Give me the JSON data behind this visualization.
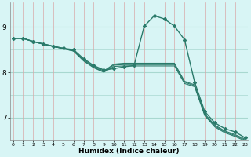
{
  "xlabel": "Humidex (Indice chaleur)",
  "bg_color": "#d8f5f5",
  "grid_color_h": "#a8d8d0",
  "grid_color_v": "#d8a8a8",
  "line_color": "#2a7a6a",
  "x_ticks": [
    0,
    1,
    2,
    3,
    4,
    5,
    6,
    7,
    8,
    9,
    10,
    11,
    12,
    13,
    14,
    15,
    16,
    17,
    18,
    19,
    20,
    21,
    22,
    23
  ],
  "y_ticks": [
    7,
    8,
    9
  ],
  "xlim": [
    -0.3,
    23.3
  ],
  "ylim": [
    6.5,
    9.55
  ],
  "lines": [
    {
      "x": [
        0,
        1,
        2,
        3,
        4,
        5,
        6,
        7,
        8,
        9,
        10,
        11,
        12,
        13,
        14,
        15,
        16,
        17,
        18,
        19,
        20,
        21,
        22,
        23
      ],
      "y": [
        8.75,
        8.75,
        8.68,
        8.63,
        8.57,
        8.53,
        8.5,
        8.3,
        8.15,
        8.05,
        8.08,
        8.12,
        8.15,
        9.02,
        9.25,
        9.18,
        9.02,
        8.72,
        7.78,
        7.13,
        6.88,
        6.75,
        6.68,
        6.55
      ],
      "marker": true
    },
    {
      "x": [
        0,
        1,
        2,
        3,
        4,
        5,
        6,
        7,
        8,
        9,
        10,
        11,
        12,
        13,
        14,
        15,
        16,
        17,
        18,
        19,
        20,
        21,
        22,
        23
      ],
      "y": [
        8.75,
        8.75,
        8.68,
        8.63,
        8.58,
        8.53,
        8.48,
        8.28,
        8.13,
        8.03,
        8.18,
        8.2,
        8.2,
        8.2,
        8.2,
        8.2,
        8.2,
        7.8,
        7.72,
        7.08,
        6.83,
        6.7,
        6.62,
        6.52
      ],
      "marker": false
    },
    {
      "x": [
        0,
        1,
        2,
        3,
        4,
        5,
        6,
        7,
        8,
        9,
        10,
        11,
        12,
        13,
        14,
        15,
        16,
        17,
        18,
        19,
        20,
        21,
        22,
        23
      ],
      "y": [
        8.75,
        8.75,
        8.68,
        8.62,
        8.57,
        8.52,
        8.47,
        8.26,
        8.11,
        8.01,
        8.16,
        8.17,
        8.17,
        8.17,
        8.17,
        8.17,
        8.17,
        7.78,
        7.7,
        7.06,
        6.81,
        6.68,
        6.6,
        6.5
      ],
      "marker": false
    },
    {
      "x": [
        0,
        1,
        2,
        3,
        4,
        5,
        6,
        7,
        8,
        9,
        10,
        11,
        12,
        13,
        14,
        15,
        16,
        17,
        18,
        19,
        20,
        21,
        22,
        23
      ],
      "y": [
        8.75,
        8.75,
        8.68,
        8.62,
        8.57,
        8.52,
        8.47,
        8.25,
        8.1,
        8.0,
        8.13,
        8.14,
        8.14,
        8.14,
        8.14,
        8.14,
        8.14,
        7.75,
        7.68,
        7.04,
        6.79,
        6.66,
        6.58,
        6.48
      ],
      "marker": false
    }
  ]
}
